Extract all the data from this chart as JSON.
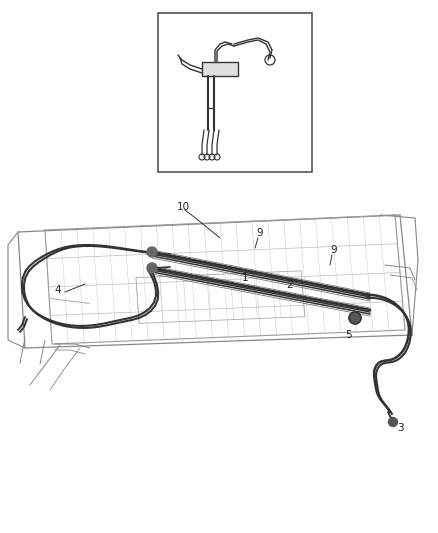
{
  "bg_color": "#ffffff",
  "line_color": "#555555",
  "dark_color": "#333333",
  "mid_gray": "#888888",
  "light_gray": "#bbbbbb",
  "label_color": "#222222",
  "label_fontsize": 7.5
}
